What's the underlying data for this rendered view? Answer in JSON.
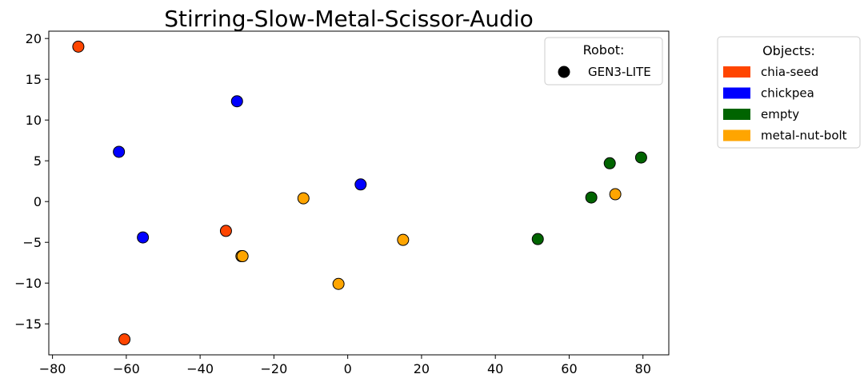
{
  "chart_data": {
    "type": "scatter",
    "title": "Stirring-Slow-Metal-Scissor-Audio",
    "xlabel": "",
    "ylabel": "",
    "xlim": [
      -81,
      87
    ],
    "ylim": [
      -18.8,
      20.9
    ],
    "xticks": [
      -80,
      -60,
      -40,
      -20,
      0,
      20,
      40,
      60,
      80
    ],
    "xtick_labels": [
      "−80",
      "−60",
      "−40",
      "−20",
      "0",
      "20",
      "40",
      "60",
      "80"
    ],
    "yticks": [
      -15,
      -10,
      -5,
      0,
      5,
      10,
      15,
      20
    ],
    "ytick_labels": [
      "−15",
      "−10",
      "−5",
      "0",
      "5",
      "10",
      "15",
      "20"
    ],
    "grid": false,
    "series": [
      {
        "name": "chia-seed",
        "color": "#FF4500",
        "points": [
          [
            -73,
            19.0
          ],
          [
            -33,
            -3.6
          ],
          [
            -60.5,
            -16.9
          ]
        ]
      },
      {
        "name": "chickpea",
        "color": "#0000FF",
        "points": [
          [
            -30,
            12.3
          ],
          [
            -62,
            6.1
          ],
          [
            -55.5,
            -4.4
          ],
          [
            3.5,
            2.1
          ]
        ]
      },
      {
        "name": "empty",
        "color": "#006400",
        "points": [
          [
            79.5,
            5.4
          ],
          [
            71,
            4.7
          ],
          [
            66,
            0.5
          ],
          [
            51.5,
            -4.6
          ]
        ]
      },
      {
        "name": "metal-nut-bolt",
        "color": "#FFA500",
        "points": [
          [
            -12,
            0.4
          ],
          [
            -28.8,
            -6.7
          ],
          [
            -28.5,
            -6.7
          ],
          [
            -2.5,
            -10.1
          ],
          [
            15,
            -4.7
          ],
          [
            72.5,
            0.9
          ]
        ]
      }
    ],
    "robot_legend": {
      "title": "Robot:",
      "entries": [
        {
          "label": "GEN3-LITE",
          "color": "#000000"
        }
      ],
      "placement": "upper right inside plot"
    },
    "objects_legend": {
      "title": "Objects:",
      "entries": [
        {
          "label": "chia-seed",
          "color": "#FF4500"
        },
        {
          "label": "chickpea",
          "color": "#0000FF"
        },
        {
          "label": "empty",
          "color": "#006400"
        },
        {
          "label": "metal-nut-bolt",
          "color": "#FFA500"
        }
      ],
      "placement": "right outside plot"
    }
  }
}
